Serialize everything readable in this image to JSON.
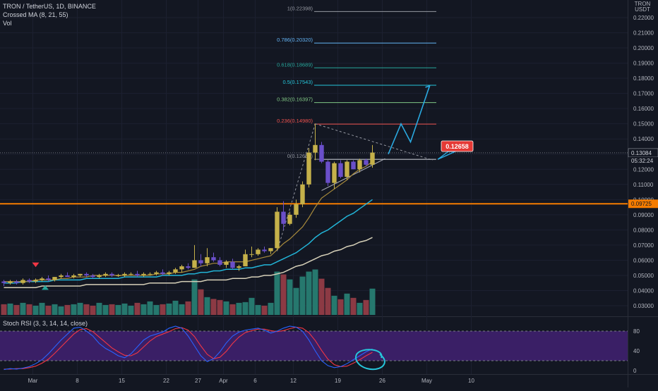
{
  "header": {
    "symbol_line": "TRON / TetherUS, 1D, BINANCE",
    "indicator_1": "Crossed MA (8, 21, 55)",
    "indicator_2": "Vol",
    "rsi_label": "Stoch RSI (3, 3, 14, 14, close)"
  },
  "price_axis": {
    "currency_line1": "TRON",
    "currency_line2": "USDT",
    "ticks": [
      "0.22000",
      "0.21000",
      "0.20000",
      "0.19000",
      "0.18000",
      "0.17000",
      "0.16000",
      "0.15000",
      "0.14000",
      "0.13000",
      "0.12000",
      "0.11000",
      "0.10000",
      "0.09000",
      "0.08000",
      "0.07000",
      "0.06000",
      "0.05000",
      "0.04000",
      "0.03000"
    ],
    "current_price": "0.13084",
    "countdown": "05:32:24",
    "hline_price": "0.09725",
    "target_badge": "0.12658"
  },
  "time_axis": {
    "labels": [
      "Mar",
      "8",
      "15",
      "22",
      "27",
      "Apr",
      "6",
      "12",
      "19",
      "26",
      "May",
      "10"
    ]
  },
  "rsi_axis": {
    "ticks": [
      "80",
      "40",
      "0"
    ]
  },
  "fib_levels": [
    {
      "label": "1(0.22398)",
      "value": 0.22398,
      "color": "#9598a1"
    },
    {
      "label": "0.786(0.20320)",
      "value": 0.2032,
      "color": "#64b5f6"
    },
    {
      "label": "0.618(0.18689)",
      "value": 0.18689,
      "color": "#26a69a"
    },
    {
      "label": "0.5(0.17543)",
      "value": 0.17543,
      "color": "#26c6da"
    },
    {
      "label": "0.382(0.16397)",
      "value": 0.16397,
      "color": "#81c784"
    },
    {
      "label": "0.236(0.14980)",
      "value": 0.1498,
      "color": "#ef5350"
    },
    {
      "label": "0(0.12658)",
      "value": 0.12658,
      "color": "#9598a1"
    }
  ],
  "colors": {
    "up": "#c5b14a",
    "down": "#6a4fc9",
    "vol_up": "#26786e",
    "vol_down": "#8c3a44",
    "ma8": "#a98b3c",
    "ma21": "#22b5d8",
    "ma55": "#d6d0b8",
    "projection": "#2aa9e0",
    "hline": "#f57c00",
    "rsi_k": "#2962ff",
    "rsi_d": "#f23645",
    "rsi_band": "#3a1f66"
  },
  "chart_data": {
    "type": "candlestick",
    "x_unit": "day",
    "ylim": [
      0.025,
      0.23
    ],
    "candles": [
      [
        0.046,
        0.047,
        0.043,
        0.045
      ],
      [
        0.045,
        0.047,
        0.044,
        0.046
      ],
      [
        0.046,
        0.047,
        0.044,
        0.045
      ],
      [
        0.045,
        0.048,
        0.044,
        0.047
      ],
      [
        0.047,
        0.048,
        0.045,
        0.046
      ],
      [
        0.046,
        0.048,
        0.045,
        0.047
      ],
      [
        0.047,
        0.049,
        0.046,
        0.048
      ],
      [
        0.048,
        0.05,
        0.046,
        0.047
      ],
      [
        0.047,
        0.049,
        0.046,
        0.049
      ],
      [
        0.049,
        0.051,
        0.048,
        0.05
      ],
      [
        0.05,
        0.052,
        0.049,
        0.049
      ],
      [
        0.049,
        0.051,
        0.048,
        0.05
      ],
      [
        0.05,
        0.051,
        0.049,
        0.051
      ],
      [
        0.051,
        0.052,
        0.049,
        0.05
      ],
      [
        0.05,
        0.051,
        0.048,
        0.049
      ],
      [
        0.049,
        0.051,
        0.048,
        0.05
      ],
      [
        0.05,
        0.052,
        0.049,
        0.051
      ],
      [
        0.051,
        0.052,
        0.049,
        0.05
      ],
      [
        0.05,
        0.051,
        0.049,
        0.05
      ],
      [
        0.05,
        0.052,
        0.049,
        0.051
      ],
      [
        0.051,
        0.052,
        0.05,
        0.051
      ],
      [
        0.051,
        0.053,
        0.049,
        0.05
      ],
      [
        0.05,
        0.052,
        0.049,
        0.051
      ],
      [
        0.051,
        0.052,
        0.05,
        0.051
      ],
      [
        0.051,
        0.053,
        0.05,
        0.052
      ],
      [
        0.052,
        0.054,
        0.05,
        0.051
      ],
      [
        0.051,
        0.053,
        0.05,
        0.052
      ],
      [
        0.052,
        0.055,
        0.051,
        0.054
      ],
      [
        0.054,
        0.057,
        0.052,
        0.056
      ],
      [
        0.056,
        0.058,
        0.054,
        0.055
      ],
      [
        0.055,
        0.07,
        0.055,
        0.06
      ],
      [
        0.06,
        0.064,
        0.056,
        0.058
      ],
      [
        0.058,
        0.068,
        0.056,
        0.062
      ],
      [
        0.062,
        0.065,
        0.059,
        0.06
      ],
      [
        0.06,
        0.062,
        0.056,
        0.057
      ],
      [
        0.057,
        0.06,
        0.055,
        0.059
      ],
      [
        0.059,
        0.061,
        0.054,
        0.055
      ],
      [
        0.055,
        0.057,
        0.053,
        0.056
      ],
      [
        0.056,
        0.067,
        0.056,
        0.064
      ],
      [
        0.064,
        0.069,
        0.062,
        0.064
      ],
      [
        0.064,
        0.068,
        0.063,
        0.067
      ],
      [
        0.067,
        0.069,
        0.065,
        0.066
      ],
      [
        0.066,
        0.068,
        0.064,
        0.068
      ],
      [
        0.068,
        0.095,
        0.067,
        0.092
      ],
      [
        0.092,
        0.099,
        0.08,
        0.084
      ],
      [
        0.084,
        0.092,
        0.083,
        0.09
      ],
      [
        0.09,
        0.1,
        0.088,
        0.097
      ],
      [
        0.097,
        0.112,
        0.095,
        0.11
      ],
      [
        0.11,
        0.134,
        0.108,
        0.131
      ],
      [
        0.131,
        0.15,
        0.126,
        0.136
      ],
      [
        0.136,
        0.138,
        0.124,
        0.125
      ],
      [
        0.125,
        0.126,
        0.109,
        0.111
      ],
      [
        0.111,
        0.125,
        0.107,
        0.124
      ],
      [
        0.124,
        0.126,
        0.114,
        0.115
      ],
      [
        0.115,
        0.126,
        0.113,
        0.125
      ],
      [
        0.125,
        0.126,
        0.12,
        0.12
      ],
      [
        0.12,
        0.127,
        0.118,
        0.126
      ],
      [
        0.126,
        0.127,
        0.122,
        0.123
      ],
      [
        0.123,
        0.136,
        0.121,
        0.131
      ]
    ],
    "volume_scale": [
      0.3,
      0.32,
      0.28,
      0.34,
      0.3,
      0.26,
      0.34,
      0.26,
      0.3,
      0.24,
      0.28,
      0.3,
      0.34,
      0.3,
      0.26,
      0.34,
      0.28,
      0.3,
      0.28,
      0.32,
      0.26,
      0.34,
      0.3,
      0.38,
      0.28,
      0.3,
      0.32,
      0.4,
      0.3,
      0.38,
      1.0,
      0.72,
      0.5,
      0.45,
      0.42,
      0.38,
      0.3,
      0.34,
      0.36,
      0.48,
      0.28,
      0.26,
      0.34,
      1.22,
      1.14,
      1.0,
      0.76,
      1.08,
      1.22,
      1.28,
      1.02,
      0.76,
      0.54,
      0.44,
      0.6,
      0.48,
      0.34,
      0.42,
      0.74
    ],
    "ma8": [
      0.046,
      0.046,
      0.046,
      0.046,
      0.046,
      0.047,
      0.047,
      0.047,
      0.047,
      0.048,
      0.048,
      0.049,
      0.049,
      0.049,
      0.05,
      0.05,
      0.05,
      0.05,
      0.05,
      0.05,
      0.05,
      0.05,
      0.05,
      0.05,
      0.051,
      0.051,
      0.051,
      0.052,
      0.052,
      0.053,
      0.054,
      0.056,
      0.057,
      0.058,
      0.058,
      0.059,
      0.059,
      0.059,
      0.059,
      0.06,
      0.061,
      0.062,
      0.063,
      0.067,
      0.071,
      0.074,
      0.078,
      0.082,
      0.088,
      0.095,
      0.101,
      0.104,
      0.107,
      0.11,
      0.113,
      0.117,
      0.12,
      0.122,
      0.125
    ],
    "ma21": [
      0.045,
      0.045,
      0.045,
      0.046,
      0.046,
      0.046,
      0.046,
      0.046,
      0.047,
      0.047,
      0.047,
      0.047,
      0.047,
      0.048,
      0.048,
      0.048,
      0.048,
      0.048,
      0.048,
      0.049,
      0.049,
      0.049,
      0.049,
      0.049,
      0.049,
      0.05,
      0.05,
      0.05,
      0.05,
      0.051,
      0.051,
      0.052,
      0.052,
      0.053,
      0.053,
      0.054,
      0.054,
      0.054,
      0.055,
      0.055,
      0.056,
      0.057,
      0.057,
      0.059,
      0.061,
      0.063,
      0.065,
      0.068,
      0.071,
      0.075,
      0.078,
      0.08,
      0.083,
      0.086,
      0.089,
      0.091,
      0.094,
      0.097,
      0.1
    ],
    "ma55": [
      0.042,
      0.042,
      0.042,
      0.042,
      0.042,
      0.042,
      0.043,
      0.043,
      0.043,
      0.043,
      0.043,
      0.043,
      0.043,
      0.044,
      0.044,
      0.044,
      0.044,
      0.044,
      0.044,
      0.044,
      0.044,
      0.044,
      0.044,
      0.045,
      0.045,
      0.045,
      0.045,
      0.045,
      0.046,
      0.046,
      0.046,
      0.046,
      0.047,
      0.047,
      0.047,
      0.047,
      0.048,
      0.048,
      0.048,
      0.049,
      0.049,
      0.05,
      0.05,
      0.051,
      0.052,
      0.054,
      0.056,
      0.057,
      0.059,
      0.061,
      0.063,
      0.064,
      0.066,
      0.067,
      0.069,
      0.07,
      0.072,
      0.073,
      0.075
    ],
    "rsi_k": [
      2,
      4,
      3,
      5,
      8,
      14,
      22,
      34,
      48,
      62,
      74,
      86,
      88,
      80,
      70,
      55,
      45,
      38,
      30,
      26,
      34,
      48,
      62,
      70,
      74,
      78,
      86,
      90,
      86,
      70,
      50,
      30,
      18,
      24,
      38,
      56,
      70,
      78,
      82,
      84,
      86,
      82,
      76,
      80,
      86,
      90,
      88,
      80,
      62,
      40,
      20,
      10,
      6,
      8,
      14,
      22,
      30,
      38,
      44
    ],
    "rsi_d": [
      3,
      3,
      4,
      4,
      6,
      9,
      15,
      23,
      35,
      48,
      61,
      74,
      83,
      85,
      79,
      68,
      57,
      46,
      38,
      31,
      30,
      36,
      48,
      60,
      69,
      74,
      79,
      85,
      87,
      82,
      69,
      50,
      33,
      24,
      27,
      39,
      55,
      68,
      77,
      81,
      84,
      84,
      81,
      79,
      81,
      85,
      88,
      86,
      77,
      61,
      41,
      23,
      12,
      8,
      9,
      15,
      22,
      30,
      37
    ],
    "projection_path": [
      [
        60.5,
        0.13
      ],
      [
        62.5,
        0.15
      ],
      [
        64,
        0.138
      ],
      [
        67,
        0.175
      ]
    ]
  }
}
